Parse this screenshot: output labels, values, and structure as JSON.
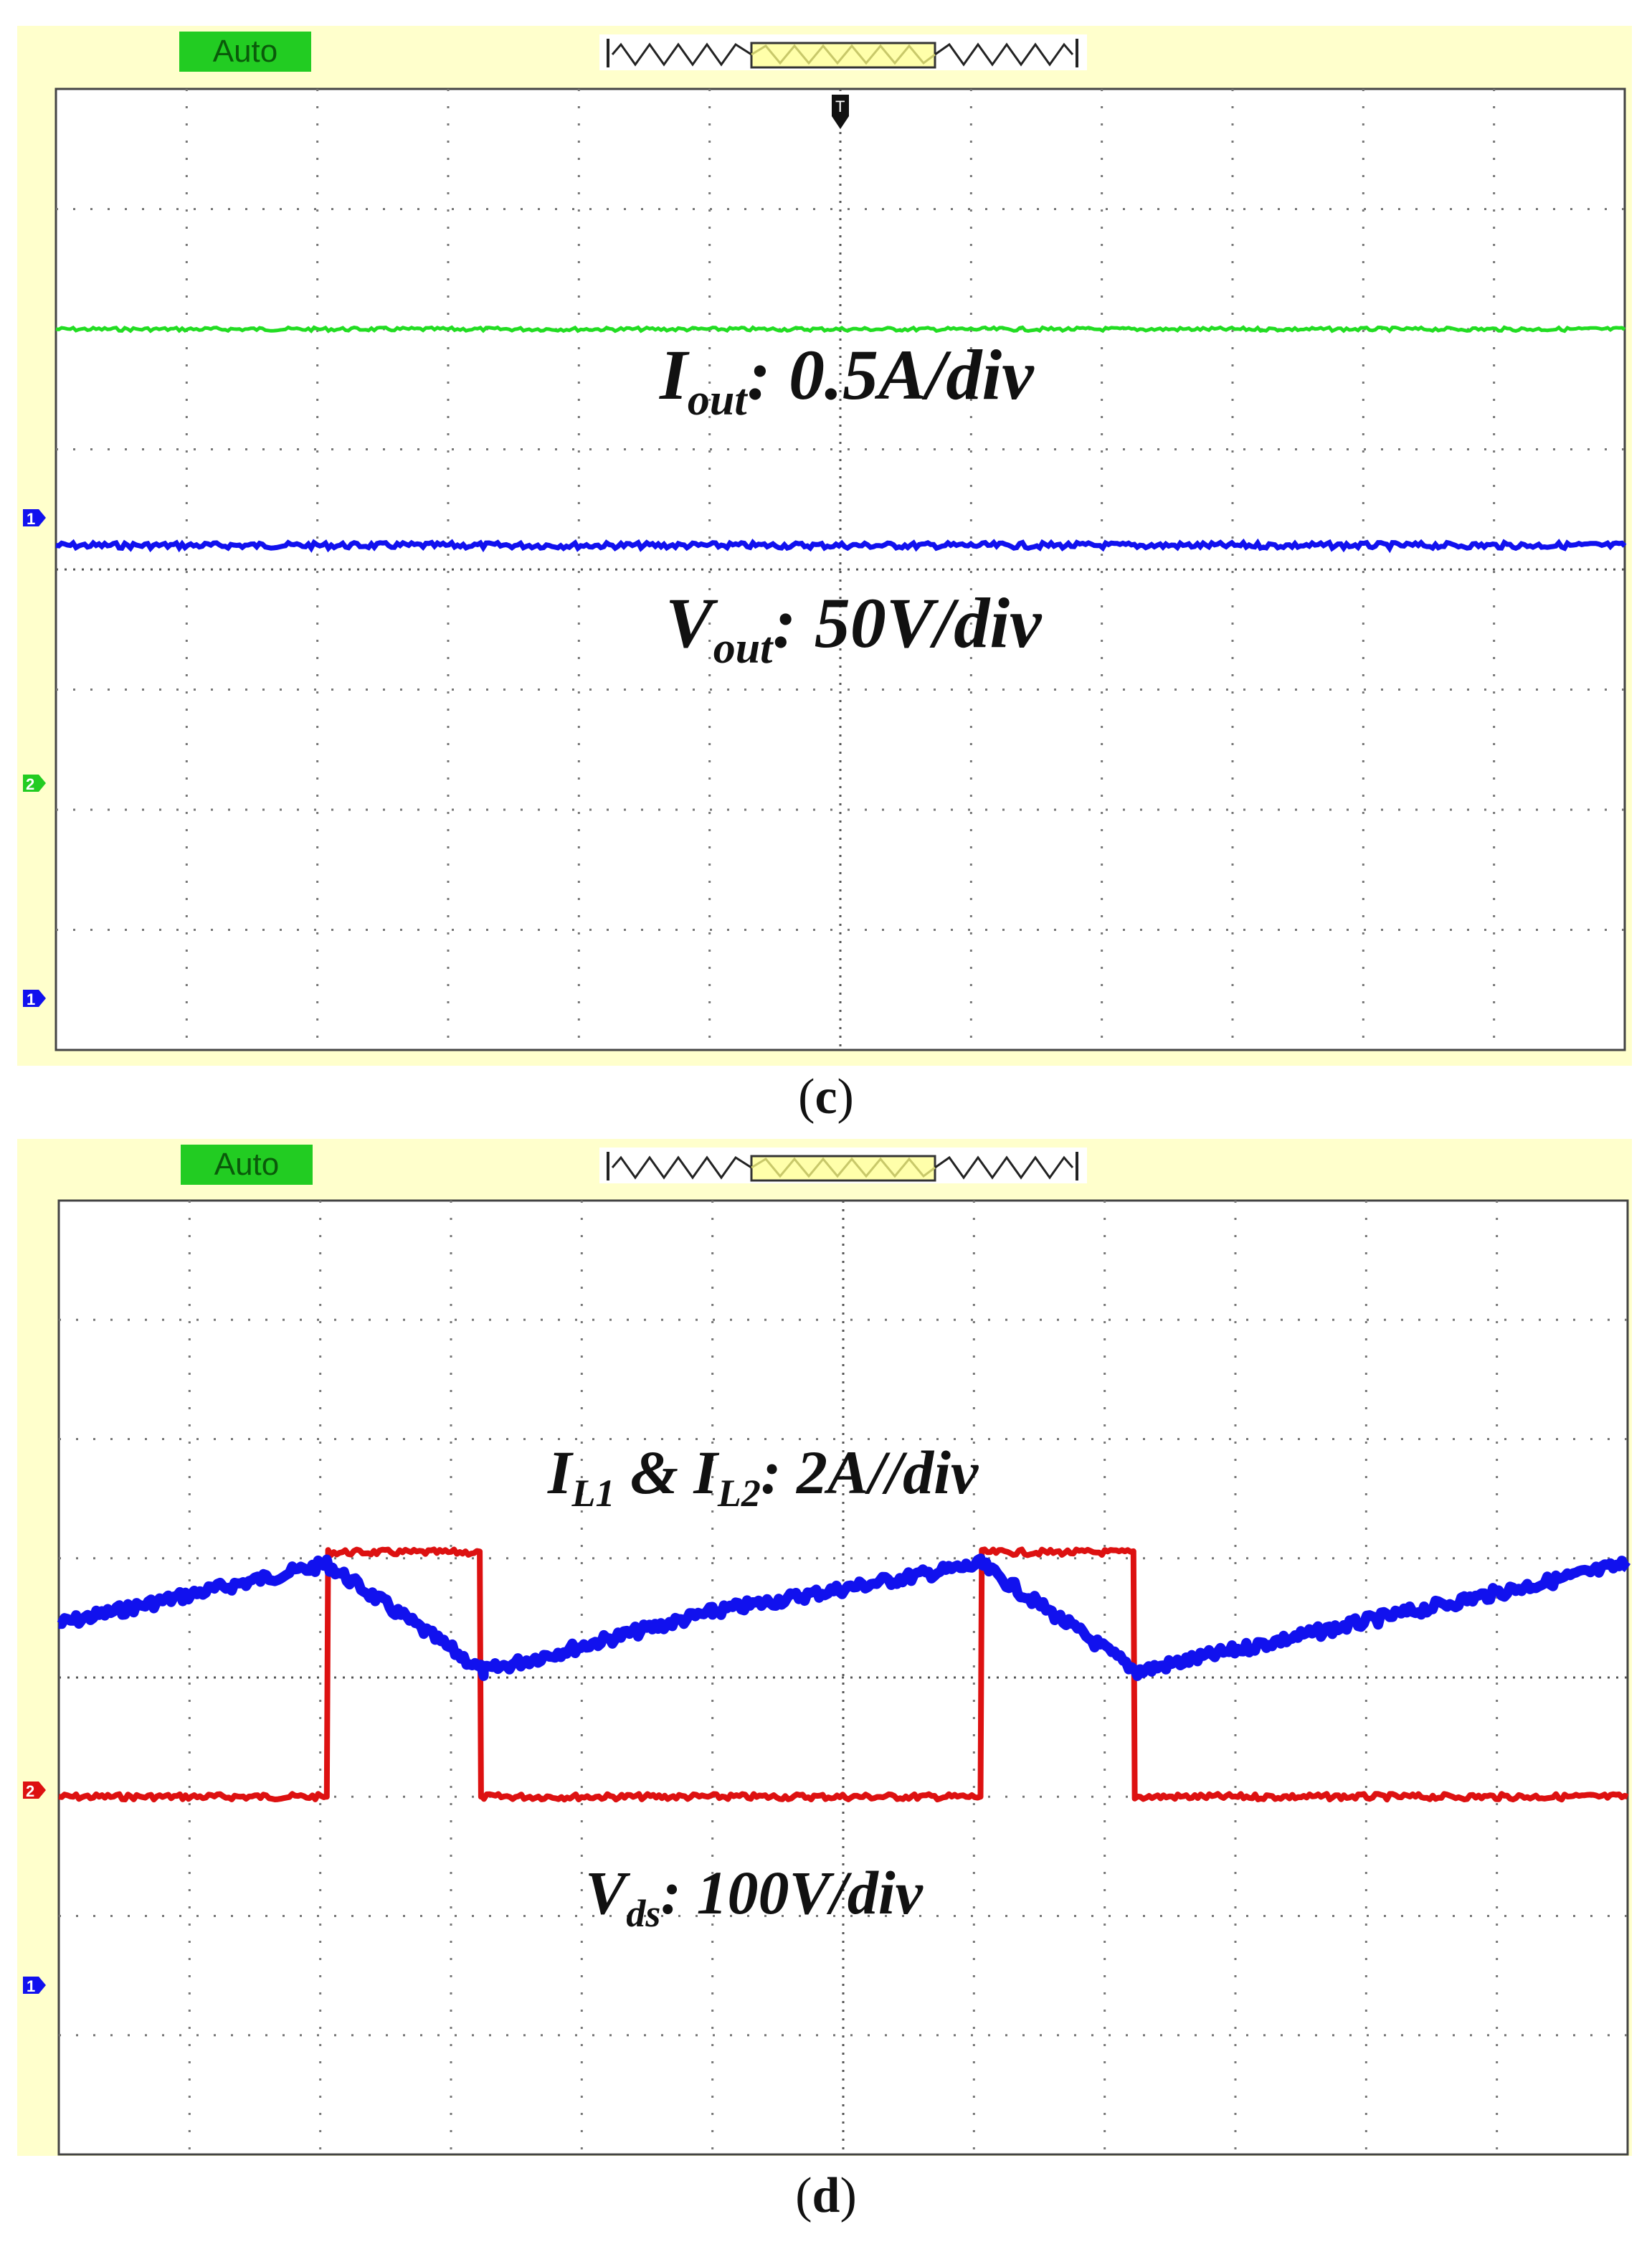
{
  "chart_data": [
    {
      "type": "line",
      "panel": "c",
      "mode_label": "Auto",
      "grid": true,
      "divisions": {
        "x": 12,
        "y": 8
      },
      "annotations": [
        "Iout: 0.5A/div",
        "Vout: 50V/div"
      ],
      "channel_markers": [
        "1",
        "2",
        "1"
      ],
      "series": [
        {
          "name": "Iout",
          "scale_per_div": "0.5A/div",
          "color": "#22dd22",
          "level_div": 6.0
        },
        {
          "name": "Vout",
          "scale_per_div": "50V/div",
          "color": "#1111ee",
          "level_div": 4.2
        }
      ],
      "caption": "(c)"
    },
    {
      "type": "line",
      "panel": "d",
      "mode_label": "Auto",
      "grid": true,
      "divisions": {
        "x": 12,
        "y": 8
      },
      "annotations": [
        "IL1 & IL2: 2A//div",
        "Vds: 100V/div"
      ],
      "channel_markers": [
        "2",
        "1"
      ],
      "series": [
        {
          "name": "IL1 & IL2",
          "scale_per_div": "2A//div",
          "color": "#1111ee",
          "x": [
            0,
            2.05,
            3.25,
            5.0,
            7.05,
            8.25,
            12.0
          ],
          "y": [
            4.45,
            4.95,
            4.05,
            4.55,
            4.95,
            4.05,
            4.95
          ]
        },
        {
          "name": "Vds",
          "scale_per_div": "100V/div",
          "color": "#dd1111",
          "x": [
            0,
            2.05,
            2.06,
            3.22,
            3.23,
            7.05,
            7.06,
            8.22,
            8.23,
            12.0
          ],
          "y": [
            3.0,
            3.0,
            5.05,
            5.05,
            3.0,
            3.0,
            5.05,
            5.05,
            3.0,
            3.0
          ]
        }
      ],
      "caption": "(d)"
    }
  ],
  "captions": {
    "c": "c",
    "d": "d"
  },
  "labels": {
    "c_iout_main": "I",
    "c_iout_sub": "out",
    "c_iout_rest": ": 0.5A/div",
    "c_vout_main": "V",
    "c_vout_sub": "out",
    "c_vout_rest": ": 50V/div",
    "d_il_a": "I",
    "d_il_sub1": "L1",
    "d_il_mid": " & I",
    "d_il_sub2": "L2",
    "d_il_rest": ": 2A//div",
    "d_vds_main": "V",
    "d_vds_sub": "ds",
    "d_vds_rest": ": 100V/div"
  }
}
